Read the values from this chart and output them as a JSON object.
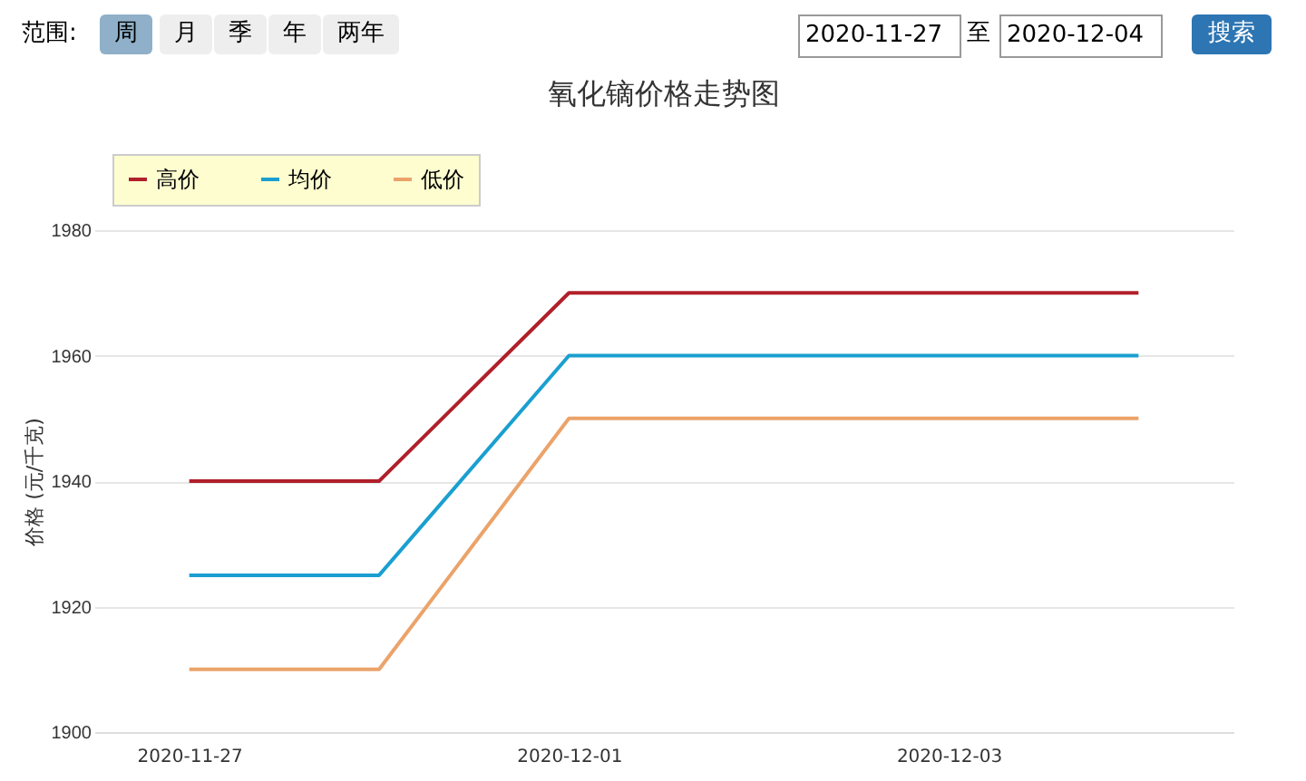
{
  "chart_data": {
    "type": "line",
    "title": "氧化镝价格走势图",
    "ylabel": "价格 (元/千克)",
    "annotations": [
      "范围:",
      "周",
      "月",
      "季",
      "年",
      "两年",
      "2020-11-27",
      "至",
      "2020-12-04",
      "搜索"
    ],
    "categories": [
      "2020-11-27",
      null,
      "2020-12-01",
      null,
      "2020-12-03",
      null
    ],
    "series": [
      {
        "name": "高价",
        "color": "#b0202a",
        "values": [
          1940,
          1940,
          1970,
          1970,
          1970,
          1970
        ]
      },
      {
        "name": "均价",
        "color": "#1a9fd0",
        "values": [
          1925,
          1925,
          1960,
          1960,
          1960,
          1960
        ]
      },
      {
        "name": "低价",
        "color": "#eba36a",
        "values": [
          1910,
          1910,
          1950,
          1950,
          1950,
          1950
        ]
      }
    ],
    "ylim": [
      1900,
      1980
    ],
    "yticks": [
      1900,
      1920,
      1940,
      1960,
      1980
    ],
    "grid": "y",
    "legend": "top left",
    "line_style": "solid"
  }
}
